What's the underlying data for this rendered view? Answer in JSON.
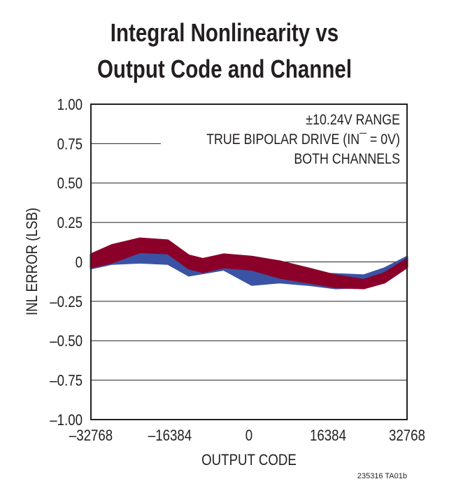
{
  "chart_data": {
    "type": "area",
    "title": [
      "Integral Nonlinearity vs",
      "Output Code and Channel"
    ],
    "xlabel": "OUTPUT CODE",
    "ylabel": "INL ERROR (LSB)",
    "xlim": [
      -32768,
      32768
    ],
    "ylim": [
      -1.0,
      1.0
    ],
    "x_ticks": [
      "–32768",
      "–16384",
      "0",
      "16384",
      "32768"
    ],
    "x_tick_values": [
      -32768,
      -16384,
      0,
      16384,
      32768
    ],
    "y_ticks": [
      "1.00",
      "0.75",
      "0.50",
      "0.25",
      "0",
      "–0.25",
      "–0.50",
      "–0.75",
      "–1.00"
    ],
    "y_tick_values": [
      1.0,
      0.75,
      0.5,
      0.25,
      0,
      -0.25,
      -0.5,
      -0.75,
      -1.0
    ],
    "grid": "horizontal",
    "annotations": [
      "±10.24V RANGE",
      "TRUE BIPOLAR DRIVE (IN¯ = 0V)",
      "BOTH CHANNELS"
    ],
    "footnote": "235316 TA01b",
    "x": [
      -32768,
      -28420,
      -22620,
      -16820,
      -12470,
      -9570,
      -5220,
      580,
      6380,
      12180,
      17980,
      23780,
      28130,
      32768
    ],
    "series": [
      {
        "color": "#3a53a4",
        "upper": [
          0.018,
          0.032,
          0.065,
          0.069,
          -0.056,
          -0.049,
          -0.019,
          -0.034,
          -0.041,
          -0.071,
          -0.078,
          -0.086,
          -0.041,
          0.032
        ],
        "lower": [
          -0.041,
          -0.012,
          -0.004,
          -0.012,
          -0.086,
          -0.071,
          -0.049,
          -0.145,
          -0.13,
          -0.145,
          -0.167,
          -0.16,
          -0.115,
          0.003
        ]
      },
      {
        "color": "#8b0029",
        "upper": [
          0.047,
          0.106,
          0.148,
          0.136,
          0.04,
          0.018,
          0.047,
          0.032,
          0.003,
          -0.041,
          -0.086,
          -0.115,
          -0.071,
          0.018
        ],
        "lower": [
          -0.034,
          -0.004,
          0.062,
          0.055,
          -0.041,
          -0.064,
          -0.034,
          -0.049,
          -0.1,
          -0.13,
          -0.16,
          -0.167,
          -0.13,
          -0.034
        ]
      }
    ]
  }
}
